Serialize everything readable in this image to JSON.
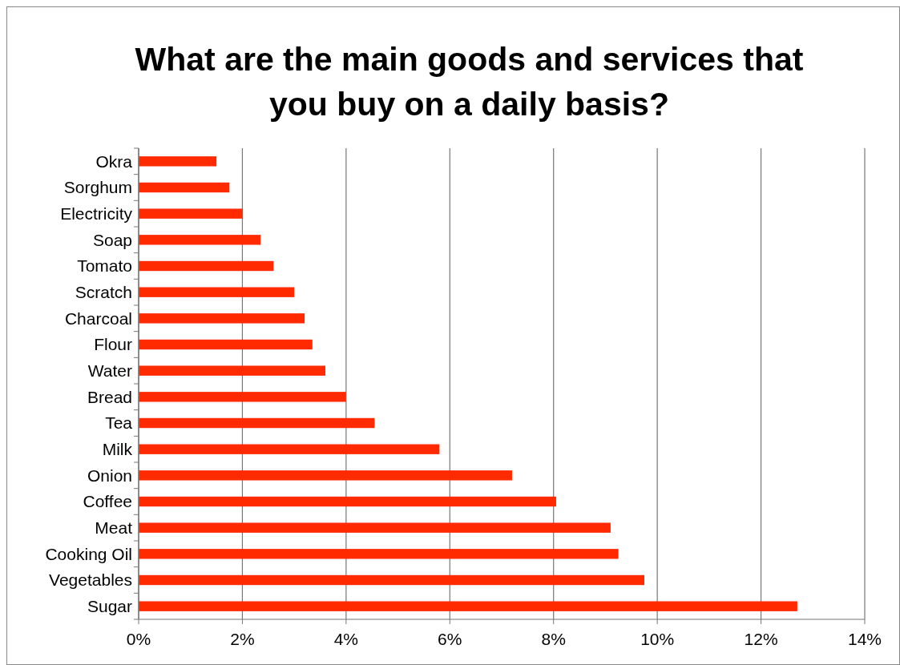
{
  "chart_data": {
    "type": "bar",
    "orientation": "horizontal",
    "title": "What are the main goods and services that you buy on a daily basis?",
    "categories": [
      "Okra",
      "Sorghum",
      "Electricity",
      "Soap",
      "Tomato",
      "Scratch",
      "Charcoal",
      "Flour",
      "Water",
      "Bread",
      "Tea",
      "Milk",
      "Onion",
      "Coffee",
      "Meat",
      "Cooking Oil",
      "Vegetables",
      "Sugar"
    ],
    "values": [
      1.5,
      1.75,
      2.0,
      2.35,
      2.6,
      3.0,
      3.2,
      3.35,
      3.6,
      4.0,
      4.55,
      5.8,
      7.2,
      8.05,
      9.1,
      9.25,
      9.75,
      12.7
    ],
    "color": "#ff2a00",
    "xlim": [
      0,
      14
    ],
    "xticks": [
      {
        "value": 0,
        "label": "0%"
      },
      {
        "value": 2,
        "label": "2%"
      },
      {
        "value": 4,
        "label": "4%"
      },
      {
        "value": 6,
        "label": "6%"
      },
      {
        "value": 8,
        "label": "8%"
      },
      {
        "value": 10,
        "label": "10%"
      },
      {
        "value": 12,
        "label": "12%"
      },
      {
        "value": 14,
        "label": "14%"
      }
    ],
    "grid": "x"
  }
}
